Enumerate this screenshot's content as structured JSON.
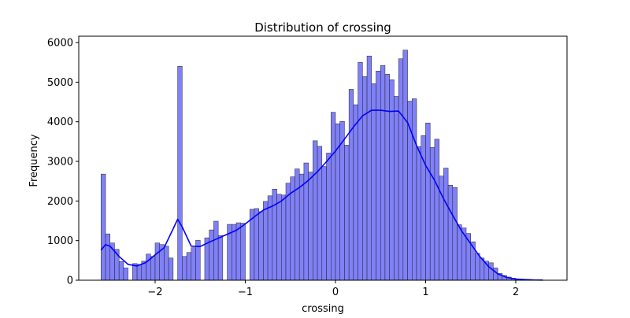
{
  "chart_data": {
    "type": "histogram",
    "title": "Distribution of crossing",
    "x_label": "crossing",
    "y_label": "Frequency",
    "bins": [
      -2.6,
      -2.55,
      -2.5,
      -2.45,
      -2.4,
      -2.35,
      -2.3,
      -2.25,
      -2.2,
      -2.15,
      -2.1,
      -2.05,
      -2.0,
      -1.95,
      -1.9,
      -1.85,
      -1.8,
      -1.75,
      -1.7,
      -1.65,
      -1.6,
      -1.55,
      -1.5,
      -1.45,
      -1.4,
      -1.35,
      -1.3,
      -1.25,
      -1.2,
      -1.15,
      -1.1,
      -1.05,
      -1.0,
      -0.95,
      -0.9,
      -0.85,
      -0.8,
      -0.75,
      -0.7,
      -0.65,
      -0.6,
      -0.55,
      -0.5,
      -0.45,
      -0.4,
      -0.35,
      -0.3,
      -0.25,
      -0.2,
      -0.15,
      -0.1,
      -0.05,
      0.0,
      0.05,
      0.1,
      0.15,
      0.2,
      0.25,
      0.3,
      0.35,
      0.4,
      0.45,
      0.5,
      0.55,
      0.6,
      0.65,
      0.7,
      0.75,
      0.8,
      0.85,
      0.9,
      0.95,
      1.0,
      1.05,
      1.1,
      1.15,
      1.2,
      1.25,
      1.3,
      1.35,
      1.4,
      1.45,
      1.5,
      1.55,
      1.6,
      1.65,
      1.7,
      1.75,
      1.8,
      1.85,
      1.9,
      1.95,
      2.0,
      2.05,
      2.1,
      2.15,
      2.2,
      2.25,
      2.3
    ],
    "values": [
      2680,
      1170,
      940,
      780,
      470,
      310,
      0,
      420,
      400,
      480,
      660,
      600,
      940,
      900,
      860,
      560,
      0,
      5400,
      600,
      700,
      820,
      1010,
      0,
      1070,
      1270,
      1490,
      1130,
      0,
      1410,
      1410,
      1450,
      1440,
      0,
      1790,
      1810,
      1730,
      1990,
      2130,
      2300,
      2170,
      2150,
      2450,
      2610,
      2810,
      2680,
      2960,
      2730,
      3520,
      3380,
      2870,
      3210,
      4240,
      3950,
      4010,
      3410,
      4820,
      4430,
      5500,
      5140,
      5660,
      4960,
      5280,
      5420,
      5200,
      5060,
      4640,
      5590,
      5810,
      4520,
      4580,
      3370,
      3650,
      3970,
      3350,
      3560,
      2630,
      2830,
      2400,
      2340,
      1400,
      1320,
      1180,
      970,
      680,
      560,
      480,
      440,
      310,
      170,
      120,
      80,
      50,
      30,
      20,
      10,
      5,
      3,
      2
    ],
    "color": "#8080f8",
    "kde": {
      "color": "#0000ff",
      "x": [
        -2.6,
        -2.55,
        -2.5,
        -2.4,
        -2.3,
        -2.2,
        -2.1,
        -2.0,
        -1.9,
        -1.8,
        -1.75,
        -1.7,
        -1.6,
        -1.5,
        -1.4,
        -1.3,
        -1.2,
        -1.1,
        -1.0,
        -0.9,
        -0.8,
        -0.7,
        -0.6,
        -0.5,
        -0.4,
        -0.3,
        -0.2,
        -0.1,
        0.0,
        0.1,
        0.2,
        0.3,
        0.4,
        0.5,
        0.6,
        0.7,
        0.8,
        0.9,
        1.0,
        1.1,
        1.2,
        1.3,
        1.4,
        1.5,
        1.6,
        1.7,
        1.8,
        1.9,
        2.0,
        2.1,
        2.2,
        2.3
      ],
      "values": [
        760,
        900,
        860,
        600,
        400,
        360,
        450,
        640,
        820,
        1300,
        1540,
        1350,
        860,
        850,
        960,
        1060,
        1160,
        1260,
        1420,
        1600,
        1770,
        1870,
        2000,
        2190,
        2340,
        2520,
        2740,
        2990,
        3260,
        3560,
        3870,
        4150,
        4290,
        4290,
        4260,
        4270,
        3980,
        3400,
        2900,
        2520,
        2050,
        1640,
        1240,
        920,
        600,
        340,
        160,
        70,
        30,
        15,
        6,
        3
      ]
    },
    "xlim": [
      -2.847,
      2.568
    ],
    "ylim": [
      0,
      6160
    ],
    "xticks": [
      {
        "value": -2,
        "label": "−2"
      },
      {
        "value": -1,
        "label": "−1"
      },
      0,
      1,
      2
    ],
    "yticks": [
      0,
      1000,
      2000,
      3000,
      4000,
      5000,
      6000
    ]
  }
}
